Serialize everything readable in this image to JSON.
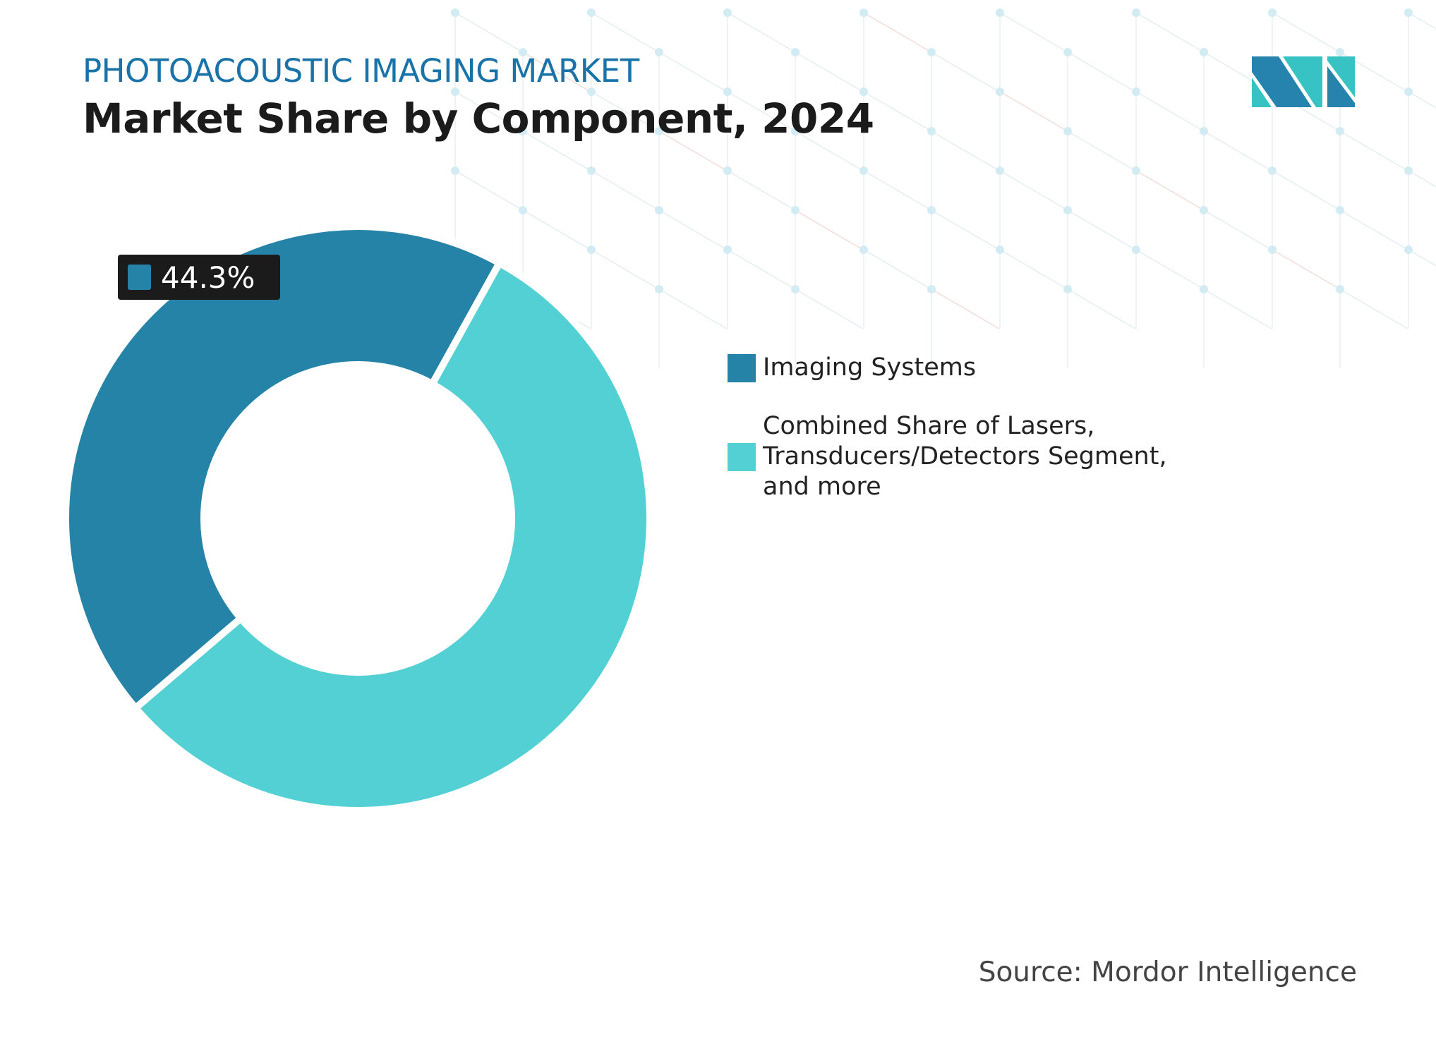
{
  "header": {
    "kicker": "PHOTOACOUSTIC IMAGING MARKET",
    "title": "Market Share by Component, 2024"
  },
  "colors": {
    "imaging_systems": "#2683a8",
    "combined": "#52d0d3",
    "kicker": "#1a73a8",
    "logo_dark": "#2583ad",
    "logo_light": "#37c3c3"
  },
  "logo": {
    "name": "Mordor Intelligence logo",
    "icon": "mi-logo"
  },
  "chart_data": {
    "type": "pie",
    "subtype": "donut",
    "title": "Market Share by Component, 2024",
    "categories": [
      "Imaging Systems",
      "Combined Share of Lasers, Transducers/Detectors Segment, and more"
    ],
    "values": [
      44.3,
      55.7
    ],
    "unit": "%",
    "data_labels": [
      {
        "category": "Imaging Systems",
        "text": "44.3%"
      }
    ],
    "legend_placement": "right"
  },
  "legend": {
    "items": [
      {
        "label": "Imaging Systems",
        "color": "#2683a8"
      },
      {
        "label": "Combined Share of Lasers, Transducers/Detectors Segment, and more",
        "color": "#52d0d3"
      }
    ]
  },
  "footer": {
    "source": "Source: Mordor Intelligence"
  }
}
